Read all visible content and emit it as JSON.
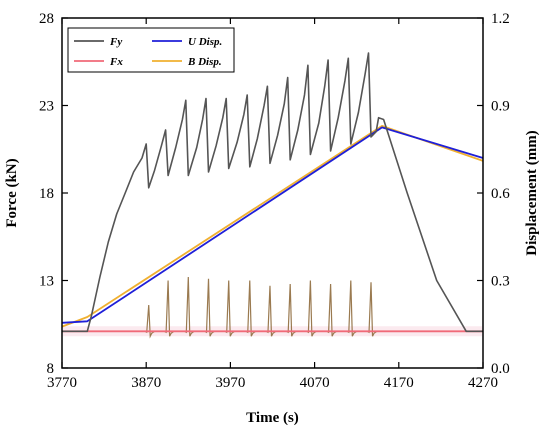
{
  "chart_data": {
    "type": "line",
    "xlabel": "Time (s)",
    "ylabel_left": "Force (kN)",
    "ylabel_right": "Displacement (mm)",
    "xlim": [
      3770,
      4270
    ],
    "ylim_left": [
      8,
      28
    ],
    "ylim_right": [
      0.0,
      1.2
    ],
    "x_ticks": [
      "3770",
      "3870",
      "3970",
      "4070",
      "4170",
      "4270"
    ],
    "y_ticks_left": [
      "8",
      "13",
      "18",
      "23",
      "28"
    ],
    "y_ticks_right": [
      "0.0",
      "0.3",
      "0.6",
      "0.9",
      "1.2"
    ],
    "grid": false,
    "legend_position": "top-left",
    "series": [
      {
        "name": "Fy",
        "axis": "left",
        "color": "#555555",
        "x": [
          3770,
          3800,
          3805,
          3815,
          3825,
          3835,
          3845,
          3855,
          3865,
          3870,
          3873,
          3880,
          3888,
          3893,
          3896,
          3905,
          3913,
          3917,
          3920,
          3930,
          3937,
          3941,
          3944,
          3953,
          3961,
          3965,
          3968,
          3978,
          3986,
          3990,
          3993,
          4002,
          4010,
          4014,
          4017,
          4026,
          4034,
          4038,
          4041,
          4050,
          4058,
          4062,
          4065,
          4075,
          4082,
          4086,
          4089,
          4098,
          4106,
          4110,
          4113,
          4122,
          4130,
          4134,
          4137,
          4143,
          4146,
          4152,
          4180,
          4215,
          4250,
          4270
        ],
        "y": [
          10.1,
          10.1,
          11.0,
          13.2,
          15.2,
          16.8,
          18.0,
          19.2,
          20.0,
          20.8,
          18.3,
          19.3,
          20.7,
          21.6,
          19.0,
          20.6,
          22.2,
          23.3,
          19.0,
          20.6,
          22.2,
          23.4,
          19.2,
          20.7,
          22.3,
          23.4,
          19.4,
          20.9,
          22.5,
          23.6,
          19.5,
          21.1,
          23.0,
          24.1,
          19.7,
          21.3,
          23.1,
          24.6,
          19.9,
          21.6,
          23.6,
          25.3,
          20.2,
          22.0,
          24.1,
          25.6,
          20.4,
          22.3,
          24.4,
          25.7,
          20.8,
          22.6,
          24.8,
          26.0,
          21.2,
          21.5,
          22.3,
          22.2,
          18.0,
          13.0,
          10.1,
          10.1
        ]
      },
      {
        "name": "Fx",
        "axis": "left",
        "color": "#f06a78",
        "x": [
          3770,
          4270
        ],
        "y": [
          10.1,
          10.1
        ]
      },
      {
        "name": "U Disp.",
        "axis": "right",
        "color": "#1f1fd8",
        "x": [
          3770,
          3800,
          4150,
          4270
        ],
        "y": [
          0.155,
          0.16,
          0.825,
          0.72
        ]
      },
      {
        "name": "B Disp.",
        "axis": "right",
        "color": "#f0b030",
        "x": [
          3770,
          3800,
          4150,
          4270
        ],
        "y": [
          0.142,
          0.175,
          0.83,
          0.71
        ]
      },
      {
        "name": "",
        "axis": "left",
        "color": "#9a7a50",
        "x": [
          3873,
          3896,
          3920,
          3944,
          3968,
          3993,
          4017,
          4041,
          4065,
          4089,
          4113,
          4137
        ],
        "y": [
          11.6,
          13.0,
          13.2,
          13.1,
          13.0,
          13.0,
          12.7,
          12.8,
          13.0,
          12.8,
          13.0,
          12.9
        ]
      }
    ]
  }
}
